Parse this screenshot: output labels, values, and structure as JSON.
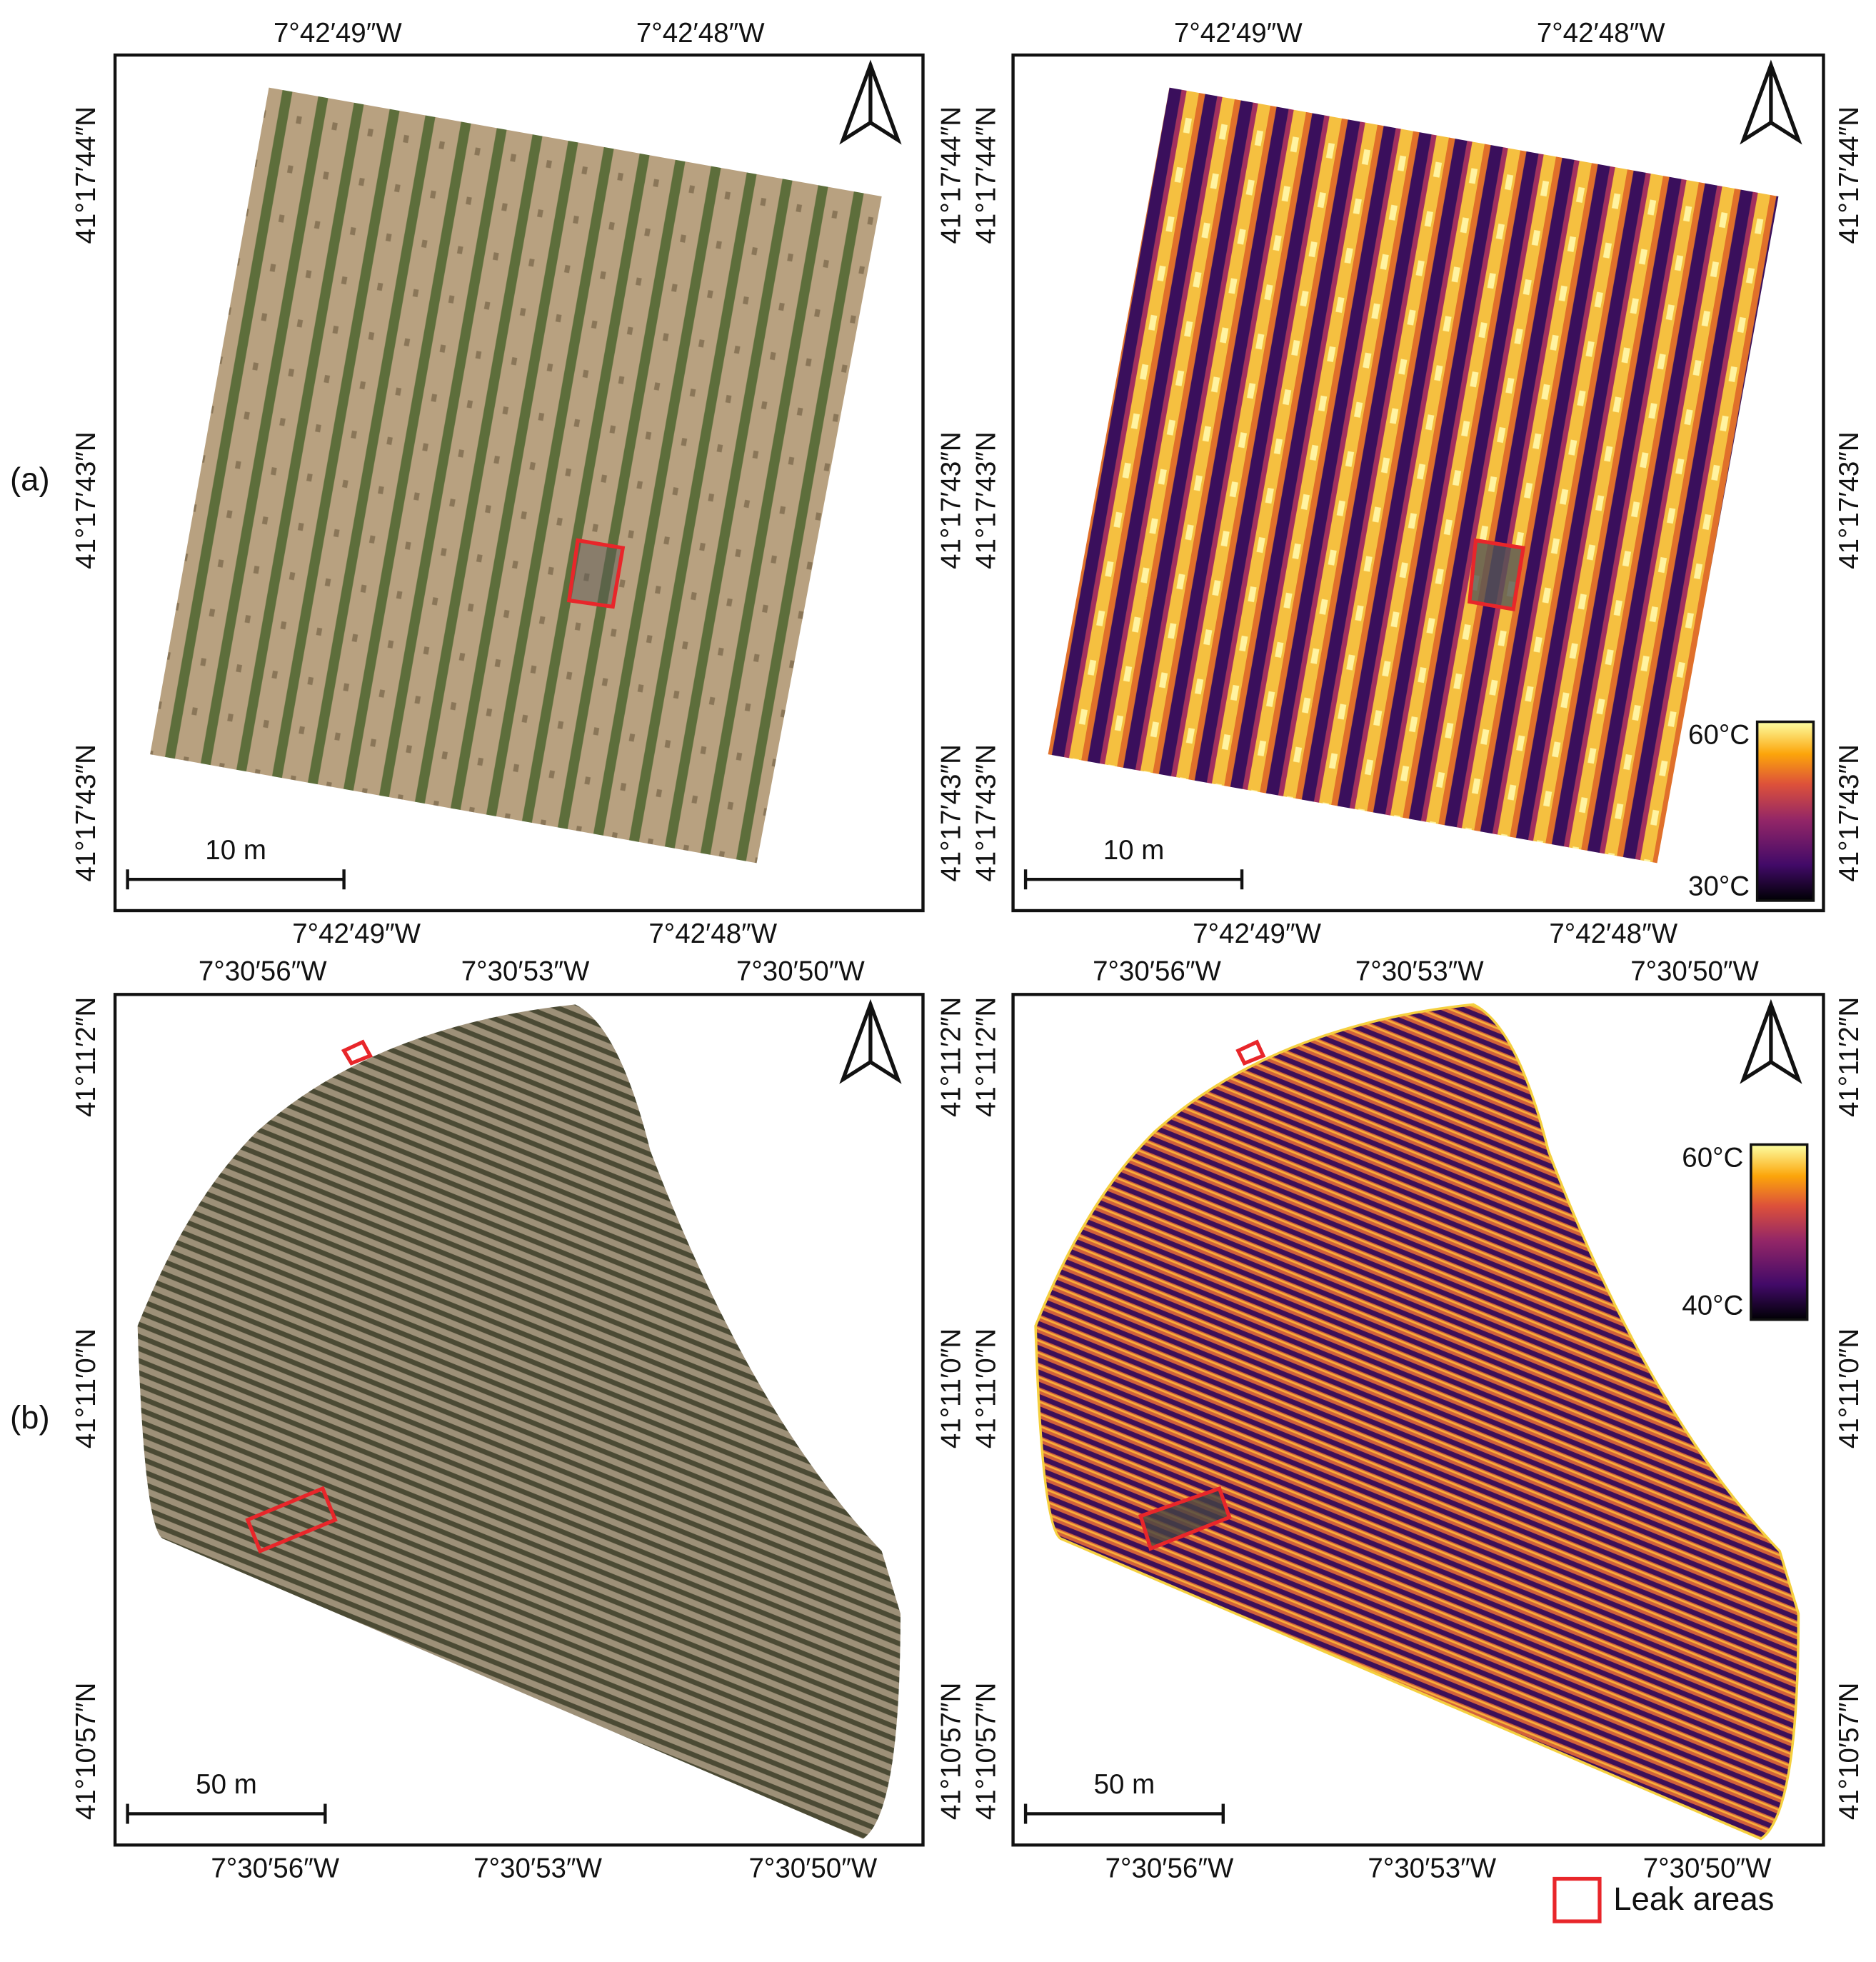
{
  "row_labels": [
    "(a)",
    "(b)"
  ],
  "panels": [
    {
      "top": [
        "7°42′49″W",
        "7°42′48″W"
      ],
      "bottom": [
        "7°42′49″W",
        "7°42′48″W"
      ],
      "left": [
        "41°17′44″N",
        "41°17′43″N",
        "41°17′43″N"
      ],
      "right": [
        "41°17′44″N",
        "41°17′43″N",
        "41°17′43″N"
      ],
      "scale_bar": "10 m"
    },
    {
      "top": [
        "7°42′49″W",
        "7°42′48″W"
      ],
      "bottom": [
        "7°42′49″W",
        "7°42′48″W"
      ],
      "left": [
        "41°17′44″N",
        "41°17′43″N",
        "41°17′43″N"
      ],
      "right": [
        "41°17′44″N",
        "41°17′43″N",
        "41°17′43″N"
      ],
      "scale_bar": "10 m",
      "colorbar": [
        "60°C",
        "30°C"
      ]
    },
    {
      "top": [
        "7°30′56″W",
        "7°30′53″W",
        "7°30′50″W"
      ],
      "bottom": [
        "7°30′56″W",
        "7°30′53″W",
        "7°30′50″W"
      ],
      "left": [
        "41°11′2″N",
        "41°11′0″N",
        "41°10′57″N"
      ],
      "right": [
        "41°11′2″N",
        "41°11′0″N",
        "41°10′57″N"
      ],
      "scale_bar": "50 m"
    },
    {
      "top": [
        "7°30′56″W",
        "7°30′53″W",
        "7°30′50″W"
      ],
      "bottom": [
        "7°30′56″W",
        "7°30′53″W",
        "7°30′50″W"
      ],
      "left": [
        "41°11′2″N",
        "41°11′0″N",
        "41°10′57″N"
      ],
      "right": [
        "41°11′2″N",
        "41°11′0″N",
        "41°10′57″N"
      ],
      "scale_bar": "50 m",
      "colorbar": [
        "60°C",
        "40°C"
      ]
    }
  ],
  "legend": "Leak areas"
}
